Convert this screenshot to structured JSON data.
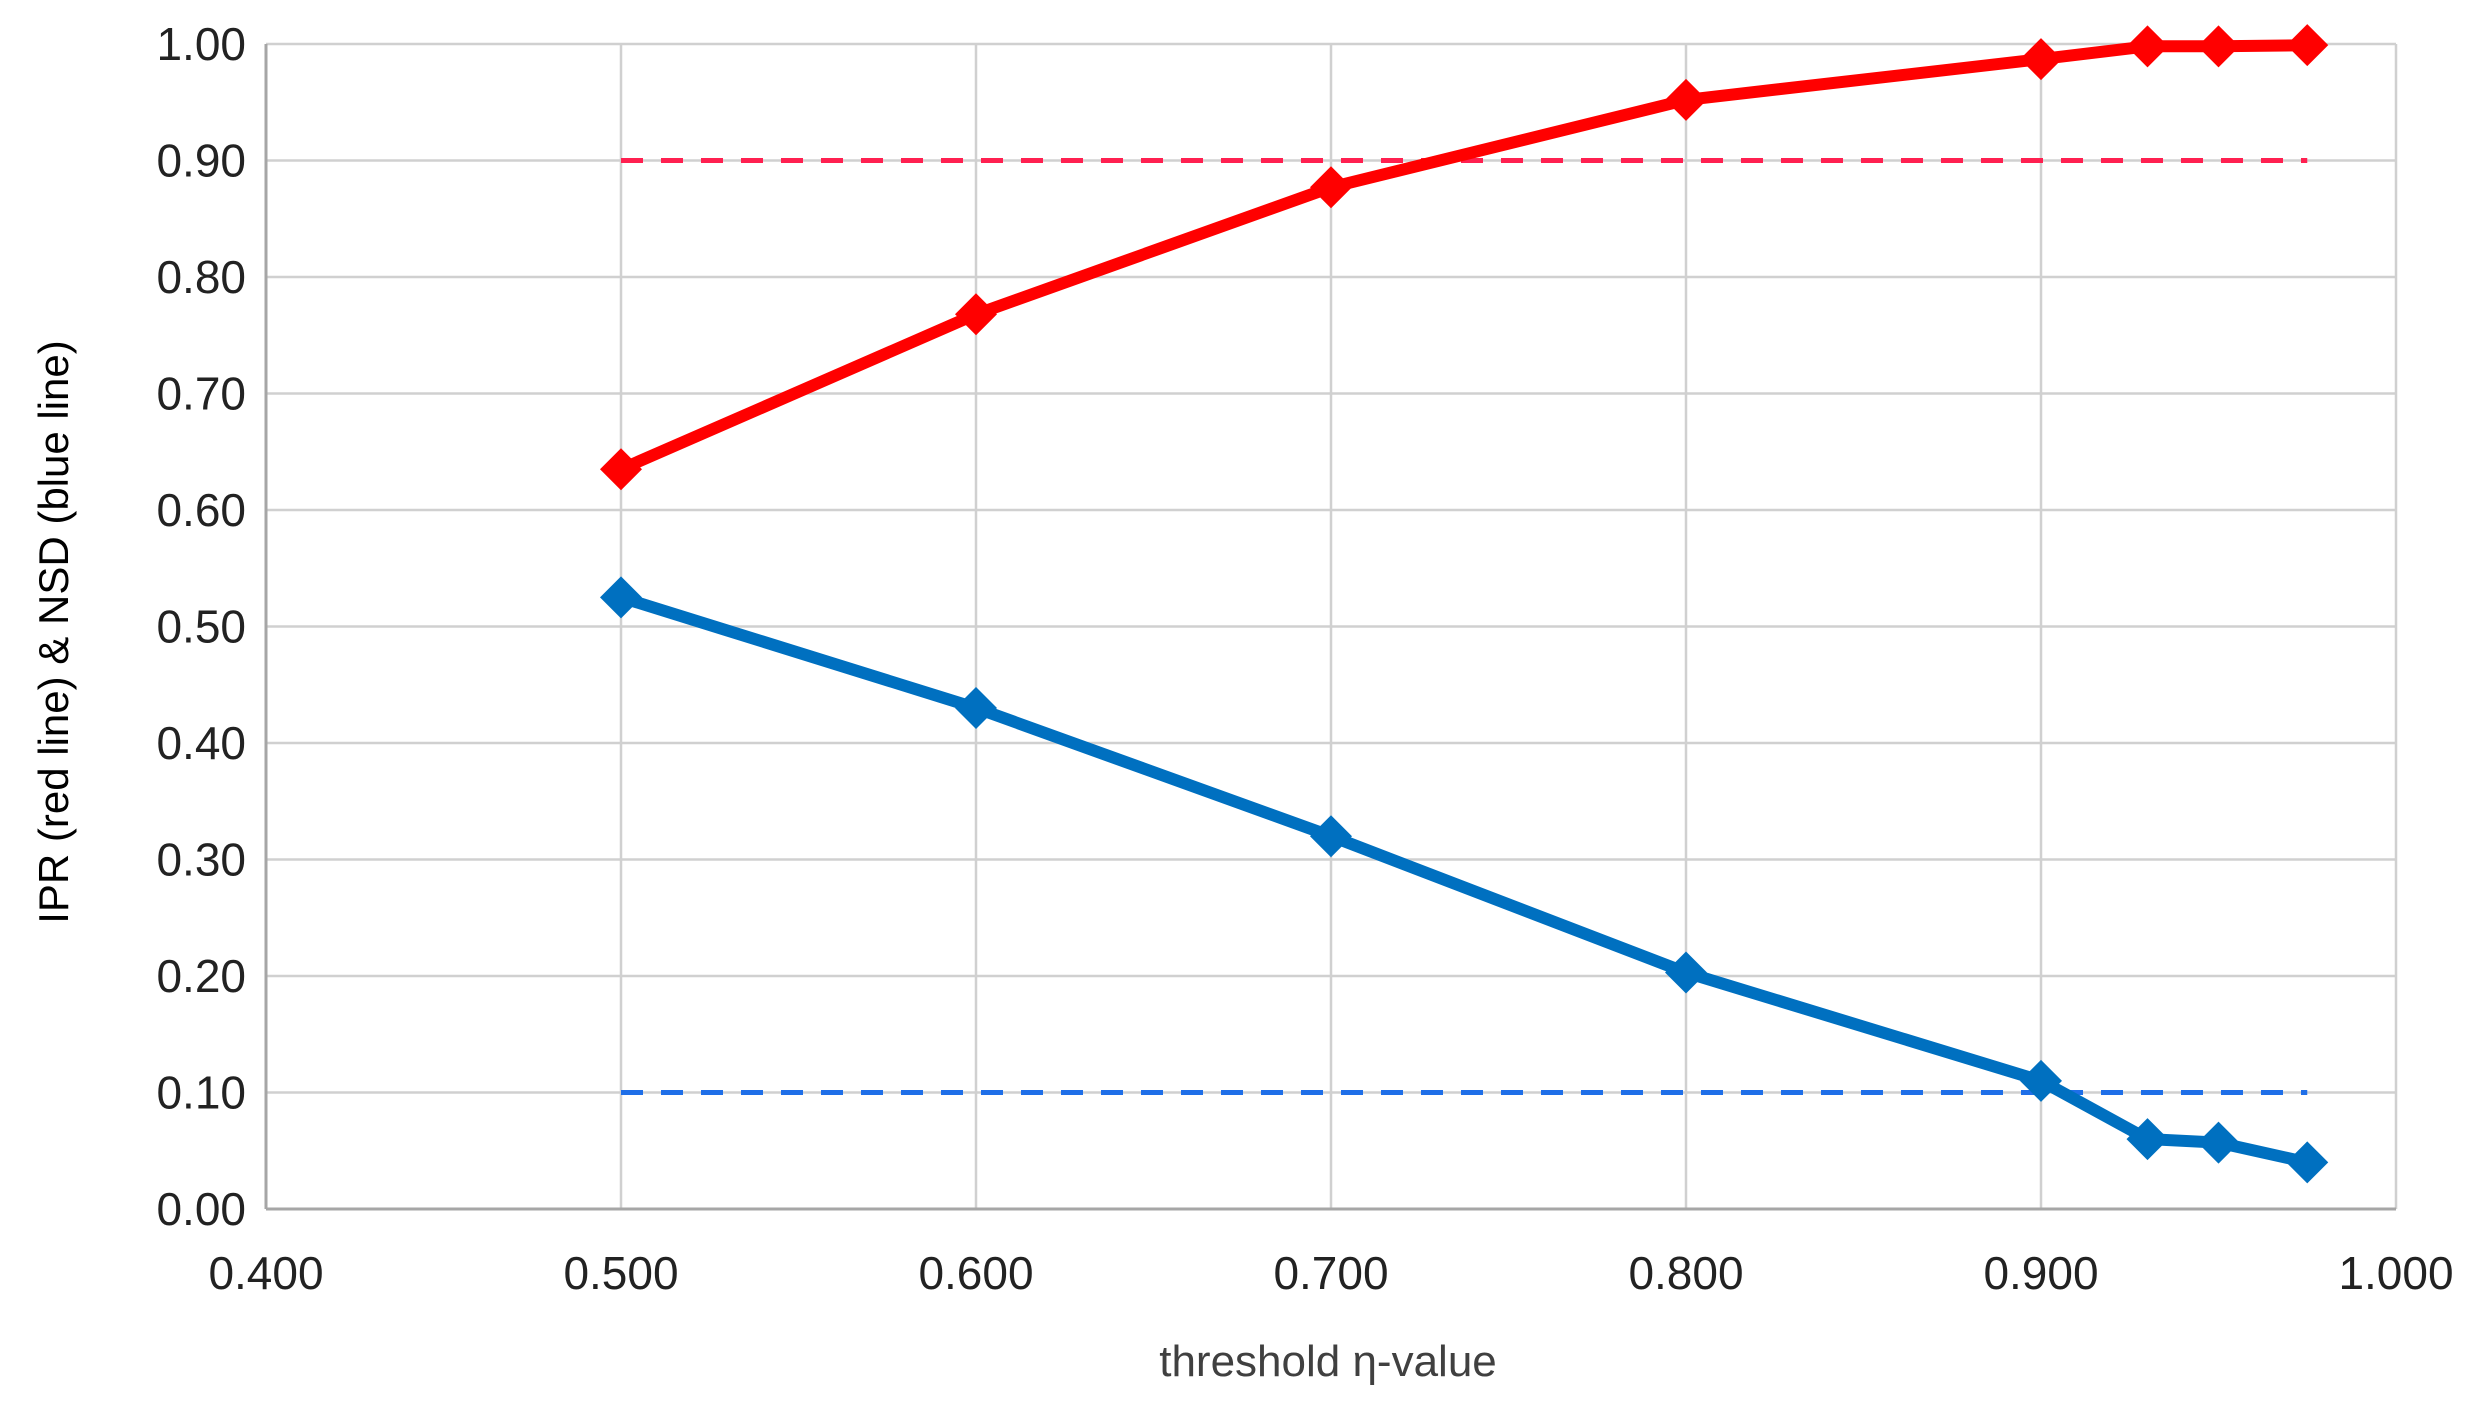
{
  "chart_data": {
    "type": "line",
    "xlabel": "threshold η-value",
    "ylabel": "IPR (red line) & NSD (blue line)",
    "xlim": [
      0.4,
      1.0
    ],
    "ylim": [
      0.0,
      1.0
    ],
    "x_ticks": [
      0.4,
      0.5,
      0.6,
      0.7,
      0.8,
      0.9,
      1.0
    ],
    "x_tick_labels": [
      "0.400",
      "0.500",
      "0.600",
      "0.700",
      "0.800",
      "0.900",
      "1.000"
    ],
    "y_ticks": [
      0.0,
      0.1,
      0.2,
      0.3,
      0.4,
      0.5,
      0.6,
      0.7,
      0.8,
      0.9,
      1.0
    ],
    "y_tick_labels": [
      "0.00",
      "0.10",
      "0.20",
      "0.30",
      "0.40",
      "0.50",
      "0.60",
      "0.70",
      "0.80",
      "0.90",
      "1.00"
    ],
    "grid": true,
    "series": [
      {
        "color": "#ff0000",
        "marker": "diamond",
        "x": [
          0.5,
          0.6,
          0.7,
          0.8,
          0.9,
          0.93,
          0.95,
          0.975
        ],
        "y": [
          0.635,
          0.768,
          0.877,
          0.952,
          0.987,
          0.998,
          0.998,
          0.999
        ]
      },
      {
        "color": "#0070c0",
        "marker": "diamond",
        "x": [
          0.5,
          0.6,
          0.7,
          0.8,
          0.9,
          0.93,
          0.95,
          0.975
        ],
        "y": [
          0.525,
          0.43,
          0.32,
          0.203,
          0.11,
          0.06,
          0.057,
          0.04
        ]
      }
    ],
    "reference_lines": [
      {
        "y": 0.9,
        "x_from": 0.5,
        "x_to": 0.975,
        "color": "#ff2050",
        "style": "dashed"
      },
      {
        "y": 0.1,
        "x_from": 0.5,
        "x_to": 0.975,
        "color": "#1f6fe8",
        "style": "dashed"
      }
    ]
  }
}
